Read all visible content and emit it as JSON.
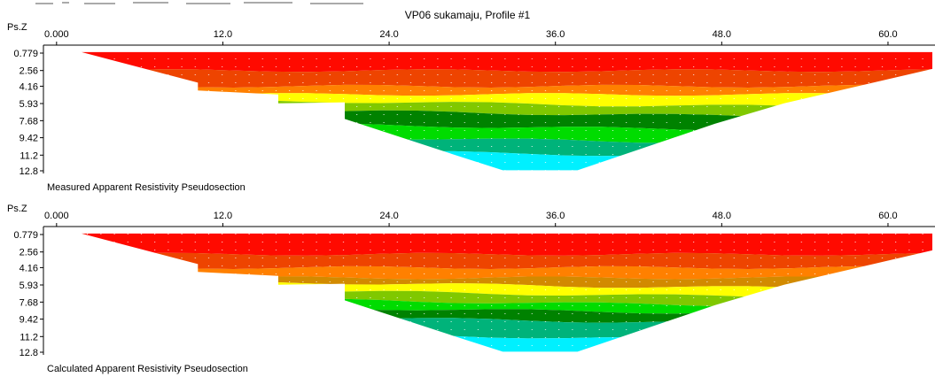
{
  "title": "VP06 sukamaju, Profile #1",
  "y_axis_label": "Ps.Z",
  "colors": {
    "red": "#ff0a00",
    "dark_red": "#df0a00",
    "dark_orange": "#ee4400",
    "orange": "#ff8000",
    "brown_orange": "#d28a00",
    "yellow": "#ffff00",
    "light_green": "#80c800",
    "green": "#00dc00",
    "dark_green": "#008200",
    "teal": "#00b37a",
    "turquoise": "#00c9a8",
    "cyan": "#00f0ff"
  },
  "chart_data": [
    {
      "type": "heatmap",
      "name": "measured",
      "title": "Measured Apparent Resistivity Pseudosection",
      "ylabel": "Ps.Z",
      "x_ticks": [
        "0.000",
        "12.0",
        "24.0",
        "36.0",
        "48.0",
        "60.0"
      ],
      "x_tick_values": [
        0,
        12,
        24,
        36,
        48,
        60
      ],
      "xlim": [
        -0.5,
        63.2
      ],
      "y_ticks": [
        "0.779",
        "2.56",
        "4.16",
        "5.93",
        "7.68",
        "9.42",
        "11.2",
        "12.8"
      ],
      "y_tick_values": [
        0.779,
        2.56,
        4.16,
        5.93,
        7.68,
        9.42,
        11.2,
        12.8
      ],
      "ylim": [
        0.779,
        12.8
      ],
      "bands": [
        {
          "depth_top": 0.779,
          "depth_bottom": 2.56,
          "color": "#ff0a00"
        },
        {
          "depth_top": 2.56,
          "depth_bottom": 4.16,
          "color": "#ee4400"
        },
        {
          "depth_top": 4.16,
          "depth_bottom": 5.0,
          "color": "#ff8000"
        },
        {
          "depth_top": 5.0,
          "depth_bottom": 5.93,
          "color": "#ffff00"
        },
        {
          "depth_top": 5.93,
          "depth_bottom": 6.9,
          "color": "#80c800"
        },
        {
          "depth_top": 6.9,
          "depth_bottom": 8.3,
          "color": "#008200"
        },
        {
          "depth_top": 8.3,
          "depth_bottom": 9.6,
          "color": "#00dc00"
        },
        {
          "depth_top": 9.6,
          "depth_bottom": 11.0,
          "color": "#00b37a"
        },
        {
          "depth_top": 11.0,
          "depth_bottom": 12.8,
          "color": "#00f0ff"
        }
      ]
    },
    {
      "type": "heatmap",
      "name": "calculated",
      "title": "Calculated Apparent Resistivity Pseudosection",
      "ylabel": "Ps.Z",
      "x_ticks": [
        "0.000",
        "12.0",
        "24.0",
        "36.0",
        "48.0",
        "60.0"
      ],
      "x_tick_values": [
        0,
        12,
        24,
        36,
        48,
        60
      ],
      "xlim": [
        -0.5,
        63.2
      ],
      "y_ticks": [
        "0.779",
        "2.56",
        "4.16",
        "5.93",
        "7.68",
        "9.42",
        "11.2",
        "12.8"
      ],
      "y_tick_values": [
        0.779,
        2.56,
        4.16,
        5.93,
        7.68,
        9.42,
        11.2,
        12.8
      ],
      "ylim": [
        0.779,
        12.8
      ],
      "bands": [
        {
          "depth_top": 0.779,
          "depth_bottom": 2.8,
          "color": "#ff0a00"
        },
        {
          "depth_top": 2.8,
          "depth_bottom": 4.16,
          "color": "#ee4400"
        },
        {
          "depth_top": 4.16,
          "depth_bottom": 5.2,
          "color": "#ff8000"
        },
        {
          "depth_top": 5.2,
          "depth_bottom": 5.93,
          "color": "#d28a00"
        },
        {
          "depth_top": 5.93,
          "depth_bottom": 6.8,
          "color": "#ffff00"
        },
        {
          "depth_top": 6.8,
          "depth_bottom": 7.7,
          "color": "#80c800"
        },
        {
          "depth_top": 7.7,
          "depth_bottom": 8.5,
          "color": "#00dc00"
        },
        {
          "depth_top": 8.5,
          "depth_bottom": 9.5,
          "color": "#008200"
        },
        {
          "depth_top": 9.5,
          "depth_bottom": 11.2,
          "color": "#00b37a"
        },
        {
          "depth_top": 11.2,
          "depth_bottom": 12.8,
          "color": "#00f0ff"
        }
      ]
    }
  ]
}
